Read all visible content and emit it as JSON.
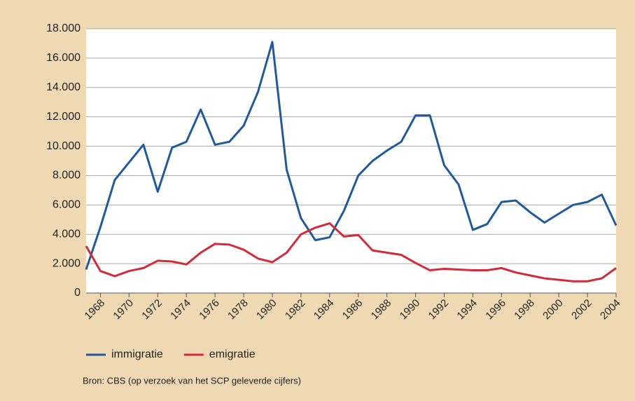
{
  "chart_data": {
    "type": "line",
    "x": [
      1967,
      1968,
      1969,
      1970,
      1971,
      1972,
      1973,
      1974,
      1975,
      1976,
      1977,
      1978,
      1979,
      1980,
      1981,
      1982,
      1983,
      1984,
      1985,
      1986,
      1987,
      1988,
      1989,
      1990,
      1991,
      1992,
      1993,
      1994,
      1995,
      1996,
      1997,
      1998,
      1999,
      2000,
      2001,
      2002,
      2003,
      2004
    ],
    "series": [
      {
        "name": "immigratie",
        "color": "#1f5aa0",
        "values": [
          1600,
          4500,
          7700,
          8900,
          10100,
          6900,
          9900,
          10300,
          12500,
          10100,
          10300,
          11400,
          13700,
          17100,
          8400,
          5100,
          3600,
          3800,
          5600,
          8000,
          9000,
          9700,
          10300,
          12100,
          12100,
          8700,
          7400,
          4300,
          4700,
          6200,
          6300,
          5500,
          4800,
          5400,
          6000,
          6200,
          6700,
          4600
        ]
      },
      {
        "name": "emigratie",
        "color": "#d42a3a",
        "values": [
          3200,
          1500,
          1150,
          1500,
          1700,
          2200,
          2150,
          1950,
          2750,
          3350,
          3300,
          2950,
          2350,
          2100,
          2750,
          4000,
          4450,
          4750,
          3850,
          3950,
          2900,
          2750,
          2600,
          2050,
          1550,
          1650,
          1600,
          1550,
          1550,
          1700,
          1400,
          1200,
          1000,
          900,
          800,
          800,
          1000,
          1700
        ]
      }
    ],
    "xlim": [
      1967,
      2004
    ],
    "xticks": [
      1968,
      1970,
      1972,
      1974,
      1976,
      1978,
      1980,
      1982,
      1984,
      1986,
      1988,
      1990,
      1992,
      1994,
      1996,
      1998,
      2000,
      2002,
      2004
    ],
    "ylim": [
      0,
      18000
    ],
    "yticks": [
      0,
      {
        "value": 2000,
        "label": "2.000"
      },
      {
        "value": 4000,
        "label": "4.000"
      },
      {
        "value": 6000,
        "label": "6.000"
      },
      {
        "value": 8000,
        "label": "8.000"
      },
      {
        "value": 10000,
        "label": "10.000"
      },
      {
        "value": 12000,
        "label": "12.000"
      },
      {
        "value": 14000,
        "label": "14.000"
      },
      {
        "value": 16000,
        "label": "16.000"
      },
      {
        "value": 18000,
        "label": "18.000"
      }
    ],
    "grid": true,
    "source": "Bron: CBS (op verzoek van het SCP geleverde cijfers)"
  }
}
